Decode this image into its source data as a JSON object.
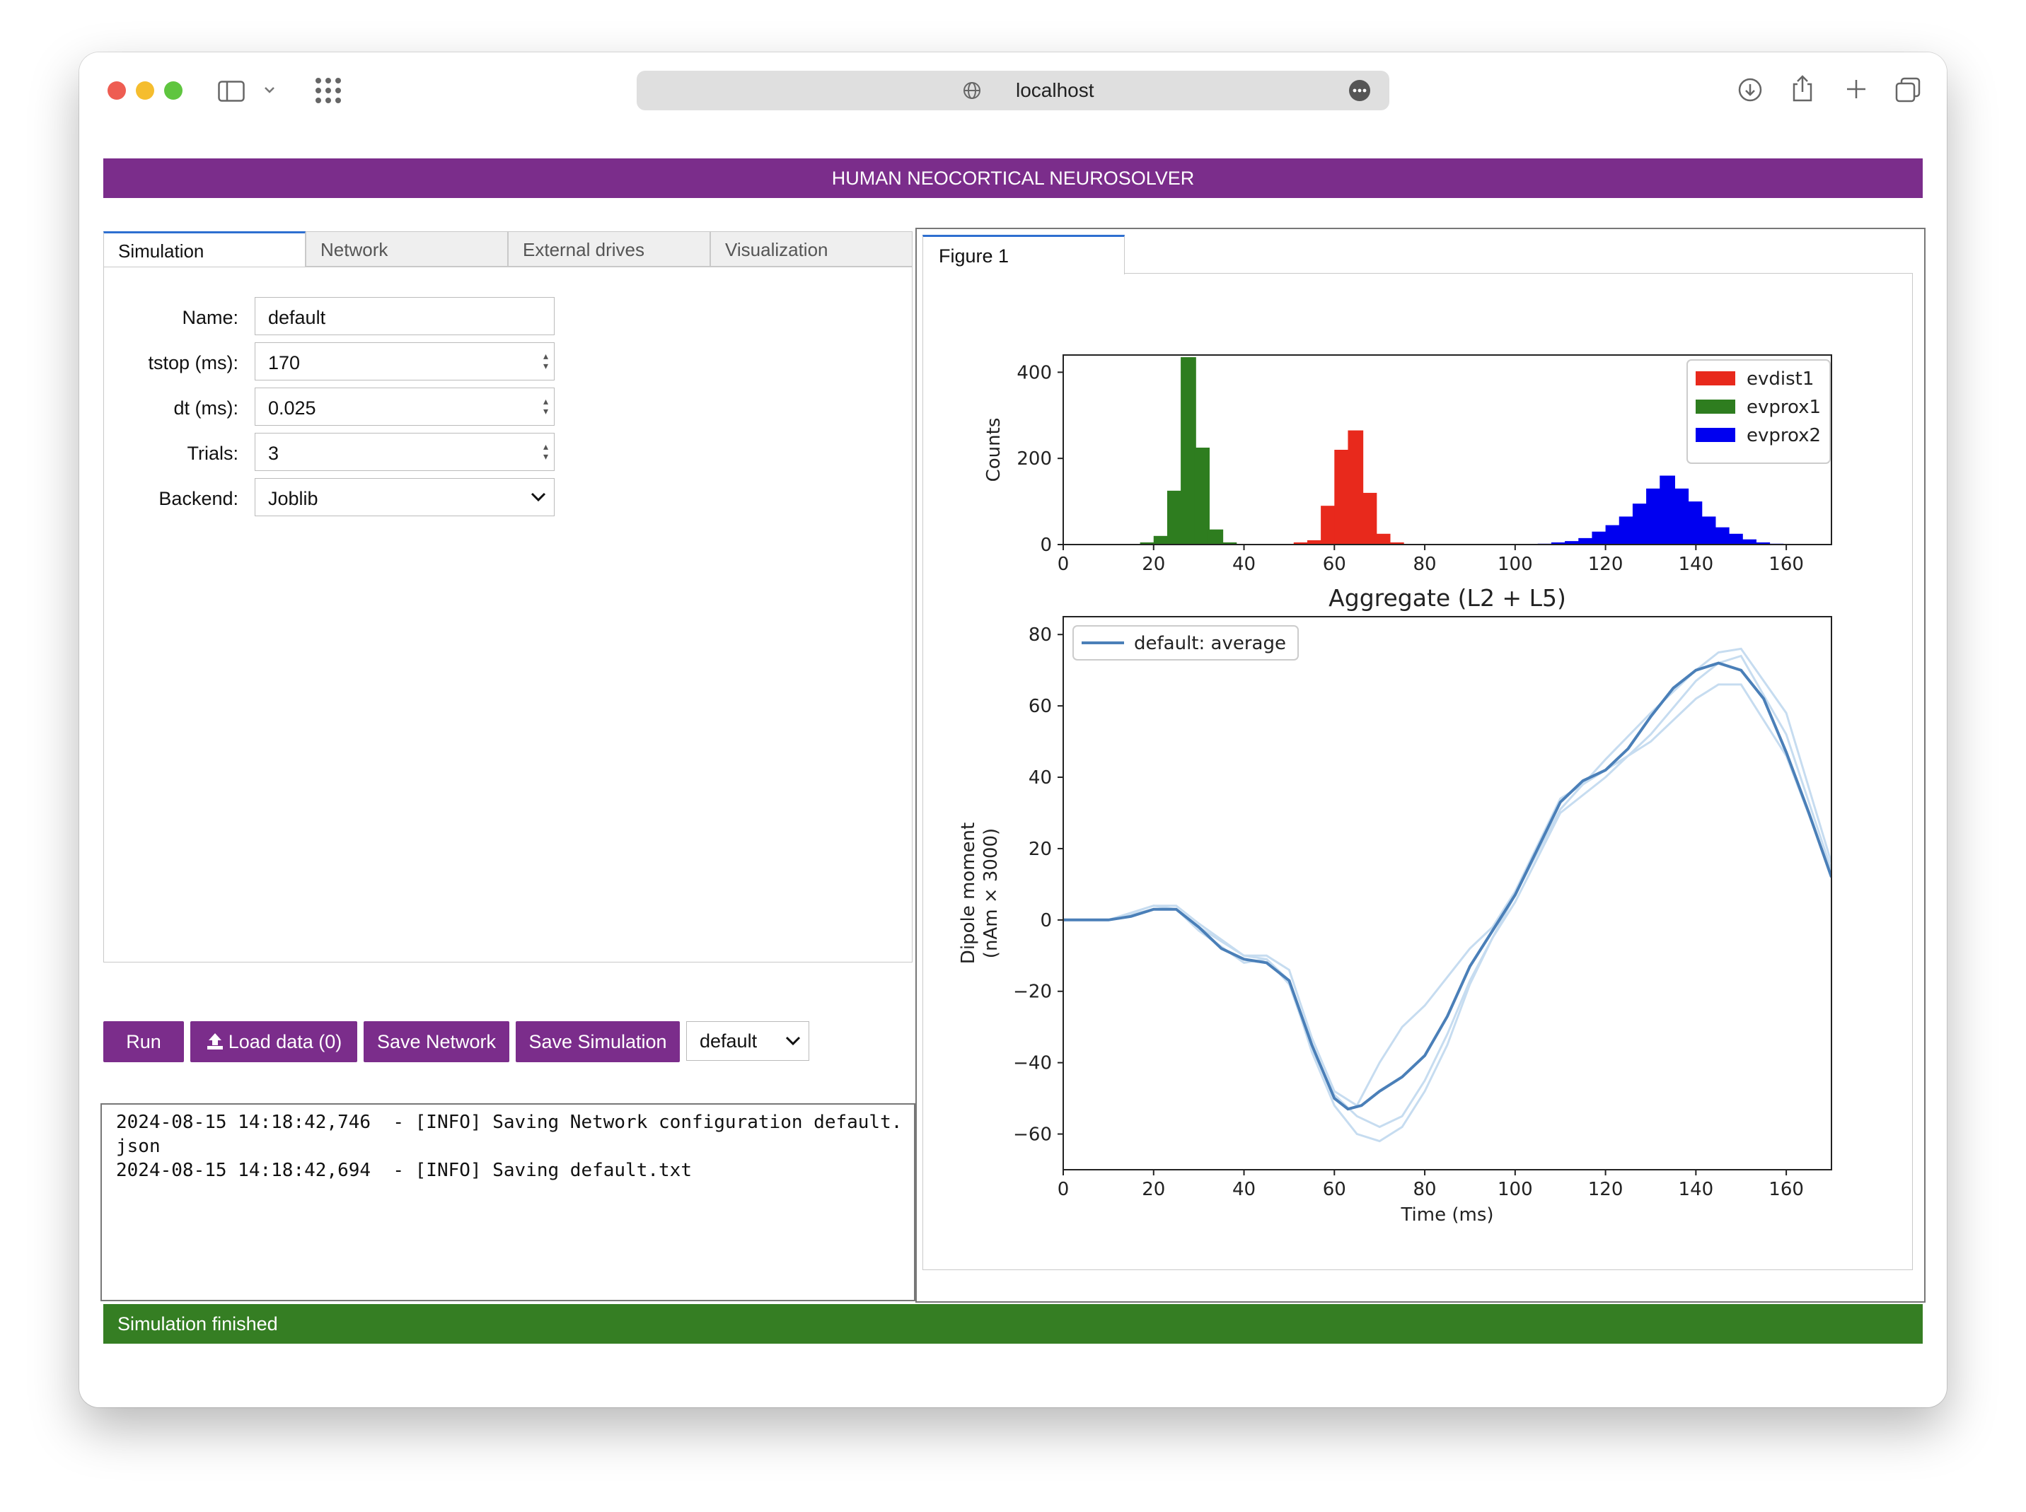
{
  "browser": {
    "url": "localhost"
  },
  "banner": {
    "title": "HUMAN NEOCORTICAL NEUROSOLVER"
  },
  "tabs": [
    {
      "label": "Simulation"
    },
    {
      "label": "Network"
    },
    {
      "label": "External drives"
    },
    {
      "label": "Visualization"
    }
  ],
  "form": {
    "name": {
      "label": "Name:",
      "value": "default"
    },
    "tstop": {
      "label": "tstop (ms):",
      "value": "170"
    },
    "dt": {
      "label": "dt (ms):",
      "value": "0.025"
    },
    "trials": {
      "label": "Trials:",
      "value": "3"
    },
    "backend": {
      "label": "Backend:",
      "value": "Joblib"
    }
  },
  "actions": {
    "run": "Run",
    "load_data": "Load data (0)",
    "save_network": "Save Network",
    "save_simulation": "Save Simulation",
    "sim_select": "default"
  },
  "log": {
    "lines": [
      "2024-08-15 14:18:42,746  - [INFO] Saving Network configuration default.",
      "json",
      "2024-08-15 14:18:42,694  - [INFO] Saving default.txt"
    ]
  },
  "figure": {
    "tab_label": "Figure 1"
  },
  "status": {
    "text": "Simulation finished"
  },
  "colors": {
    "purple": "#7b2d8b",
    "green_status": "#357e23",
    "evdist1": "#e8291c",
    "evprox1": "#2e7d1f",
    "evprox2": "#0000f0",
    "dipole_line": "#4a7fb8",
    "dipole_trials": "#c6dcf0"
  },
  "chart_data": [
    {
      "type": "bar",
      "title": "",
      "xlabel": "",
      "ylabel": "Counts",
      "xlim": [
        0,
        170
      ],
      "ylim": [
        0,
        440
      ],
      "xticks": [
        "0",
        "20",
        "40",
        "60",
        "80",
        "100",
        "120",
        "140",
        "160"
      ],
      "yticks": [
        "0",
        "200",
        "400"
      ],
      "legend_position": "top-right",
      "bin_width": 3.4,
      "series": [
        {
          "name": "evdist1",
          "bins": [
            [
              51,
              5
            ],
            [
              54,
              10
            ],
            [
              57,
              90
            ],
            [
              60,
              220
            ],
            [
              63,
              265
            ],
            [
              66,
              120
            ],
            [
              69,
              25
            ],
            [
              72,
              5
            ]
          ]
        },
        {
          "name": "evprox1",
          "bins": [
            [
              17,
              5
            ],
            [
              20,
              20
            ],
            [
              23,
              125
            ],
            [
              26,
              435
            ],
            [
              29,
              225
            ],
            [
              32,
              35
            ],
            [
              35,
              5
            ]
          ]
        },
        {
          "name": "evprox2",
          "bins": [
            [
              105,
              2
            ],
            [
              108,
              5
            ],
            [
              111,
              8
            ],
            [
              114,
              15
            ],
            [
              117,
              30
            ],
            [
              120,
              45
            ],
            [
              123,
              65
            ],
            [
              126,
              95
            ],
            [
              129,
              130
            ],
            [
              132,
              160
            ],
            [
              135,
              130
            ],
            [
              138,
              100
            ],
            [
              141,
              65
            ],
            [
              144,
              40
            ],
            [
              147,
              25
            ],
            [
              150,
              12
            ],
            [
              153,
              5
            ],
            [
              156,
              2
            ]
          ]
        }
      ]
    },
    {
      "type": "line",
      "title": "Aggregate (L2 + L5)",
      "xlabel": "Time (ms)",
      "ylabel": "Dipole moment\n(nAm × 3000)",
      "xlim": [
        0,
        170
      ],
      "ylim": [
        -70,
        85
      ],
      "xticks": [
        "0",
        "20",
        "40",
        "60",
        "80",
        "100",
        "120",
        "140",
        "160"
      ],
      "yticks": [
        "−60",
        "−40",
        "−20",
        "0",
        "20",
        "40",
        "60",
        "80"
      ],
      "legend_position": "top-left",
      "series": [
        {
          "name": "default: average",
          "x": [
            0,
            5,
            10,
            15,
            20,
            25,
            30,
            35,
            40,
            45,
            50,
            55,
            60,
            63,
            66,
            70,
            75,
            80,
            85,
            90,
            95,
            100,
            105,
            110,
            115,
            120,
            125,
            130,
            135,
            140,
            145,
            150,
            155,
            160,
            165,
            170
          ],
          "y": [
            0,
            0,
            0,
            1,
            3,
            3,
            -2,
            -8,
            -11,
            -12,
            -17,
            -35,
            -50,
            -53,
            -52,
            -48,
            -44,
            -38,
            -27,
            -13,
            -3,
            7,
            20,
            33,
            39,
            42,
            48,
            57,
            65,
            70,
            72,
            70,
            62,
            47,
            30,
            12
          ]
        },
        {
          "name": "",
          "x": [
            0,
            10,
            20,
            25,
            30,
            40,
            45,
            50,
            55,
            60,
            65,
            70,
            75,
            80,
            85,
            90,
            95,
            100,
            110,
            120,
            130,
            140,
            145,
            150,
            160,
            170
          ],
          "y": [
            0,
            0,
            4,
            3,
            -3,
            -12,
            -11,
            -18,
            -36,
            -49,
            -55,
            -58,
            -55,
            -45,
            -32,
            -17,
            -5,
            5,
            30,
            40,
            52,
            67,
            72,
            74,
            52,
            14
          ]
        },
        {
          "name": "",
          "x": [
            0,
            10,
            20,
            25,
            30,
            40,
            45,
            50,
            55,
            60,
            65,
            70,
            75,
            80,
            85,
            90,
            95,
            100,
            110,
            120,
            130,
            140,
            145,
            150,
            160,
            170
          ],
          "y": [
            0,
            0,
            4,
            4,
            -1,
            -10,
            -10,
            -14,
            -33,
            -48,
            -52,
            -40,
            -30,
            -24,
            -16,
            -8,
            -2,
            8,
            34,
            42,
            50,
            62,
            66,
            66,
            46,
            13
          ]
        },
        {
          "name": "",
          "x": [
            0,
            10,
            20,
            25,
            30,
            40,
            45,
            50,
            55,
            60,
            65,
            70,
            75,
            80,
            85,
            90,
            95,
            100,
            110,
            120,
            130,
            140,
            145,
            150,
            160,
            170
          ],
          "y": [
            0,
            0,
            3,
            3,
            -2,
            -10,
            -11,
            -17,
            -37,
            -52,
            -60,
            -62,
            -58,
            -48,
            -35,
            -18,
            -5,
            7,
            31,
            45,
            58,
            70,
            75,
            76,
            58,
            16
          ]
        }
      ]
    }
  ]
}
